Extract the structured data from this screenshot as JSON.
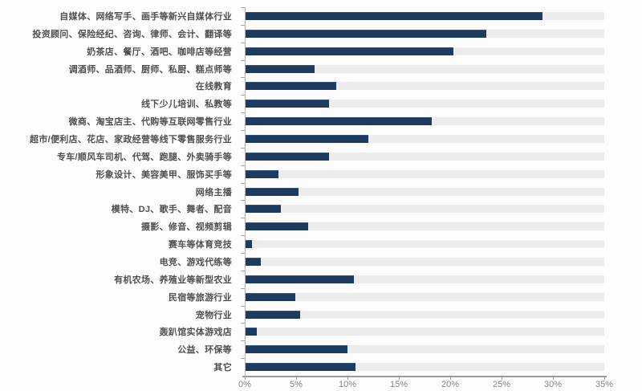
{
  "chart_data": {
    "type": "bar",
    "orientation": "horizontal",
    "title": "",
    "xlabel": "",
    "ylabel": "",
    "xlim": [
      0,
      35
    ],
    "x_ticks": [
      "0%",
      "5%",
      "10%",
      "15%",
      "20%",
      "25%",
      "30%",
      "35%"
    ],
    "grid": false,
    "legend": false,
    "value_unit": "percent",
    "categories": [
      "自媒体、网络写手、画手等新兴自媒体行业",
      "投资顾问、保险经纪、咨询、律师、会计、翻译等",
      "奶茶店、餐厅、酒吧、咖啡店等经营",
      "调酒师、品酒师、厨师、私厨、糕点师等",
      "在线教育",
      "线下少儿培训、私教等",
      "微商、淘宝店主、代购等互联网零售行业",
      "超市/便利店、花店、家政经营等线下零售服务行业",
      "专车/顺风车司机、代驾、跑腿、外卖骑手等",
      "形象设计、美容美甲、服饰买手等",
      "网络主播",
      "模特、DJ、歌手、舞者、配音",
      "摄影、修音、视频剪辑",
      "赛车等体育竞技",
      "电竞、游戏代练等",
      "有机农场、养殖业等新型农业",
      "民宿等旅游行业",
      "宠物行业",
      "轰趴馆实体游戏店",
      "公益、环保等",
      "其它"
    ],
    "values": [
      29.0,
      23.5,
      20.3,
      6.8,
      8.9,
      8.2,
      18.2,
      12.0,
      8.2,
      3.3,
      5.2,
      3.5,
      6.2,
      0.7,
      1.6,
      10.6,
      4.9,
      5.4,
      1.2,
      10.0,
      10.8
    ]
  },
  "colors": {
    "bar": "#1e3a5e",
    "track": "#ececec",
    "axis_line": "#9b9b9b",
    "tick_text": "#858585",
    "label_text": "#4f4f4f",
    "background": "#fdfdfd"
  }
}
